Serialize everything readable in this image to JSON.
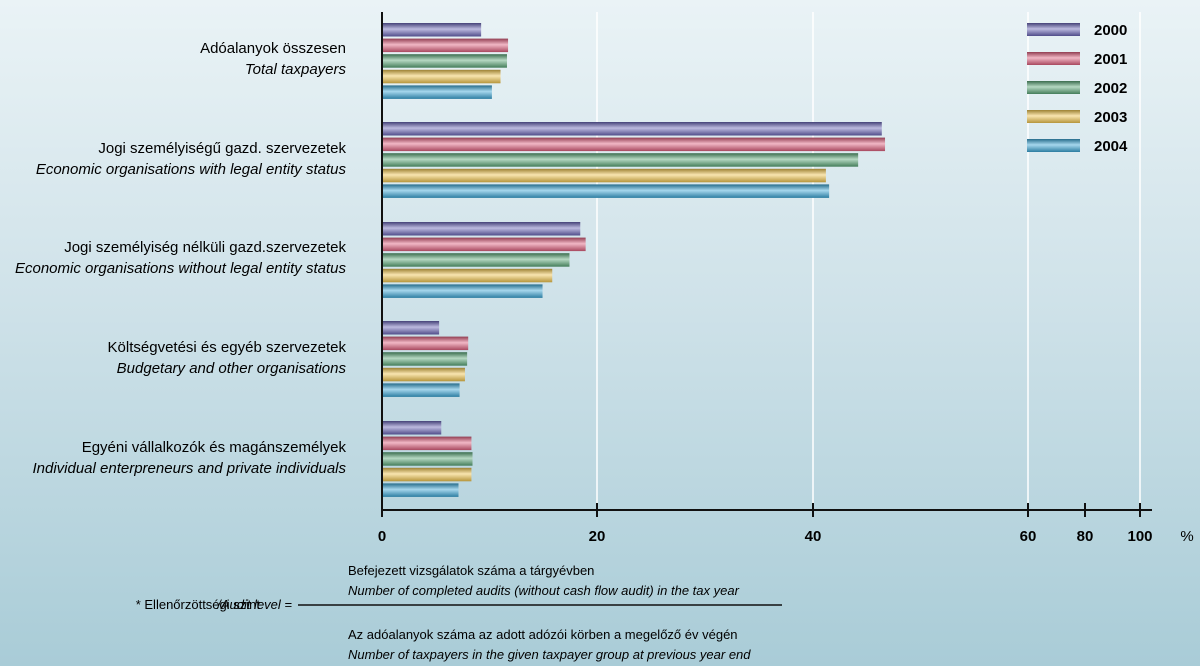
{
  "chart_data": {
    "type": "bar",
    "orientation": "horizontal",
    "categories": [
      {
        "hu": "Adóalanyok összesen",
        "en": "Total taxpayers"
      },
      {
        "hu": "Jogi személyiségű gazd. szervezetek",
        "en": "Economic organisations with legal entity status"
      },
      {
        "hu": "Jogi személyiség nélküli gazd.szervezetek",
        "en": "Economic organisations without legal entity status"
      },
      {
        "hu": "Költségvetési  és egyéb szervezetek",
        "en": "Budgetary and other organisations"
      },
      {
        "hu": "Egyéni vállalkozók és magánszemélyek",
        "en": "Individual enterpreneurs and private individuals"
      }
    ],
    "series": [
      {
        "name": "2000",
        "color": "#6a66b8",
        "values": [
          9.2,
          46.4,
          18.4,
          5.3,
          5.5
        ]
      },
      {
        "name": "2001",
        "color": "#e0607e",
        "values": [
          11.7,
          46.7,
          18.9,
          8.0,
          8.3
        ]
      },
      {
        "name": "2002",
        "color": "#5aa878",
        "values": [
          11.6,
          44.2,
          17.4,
          7.9,
          8.4
        ]
      },
      {
        "name": "2003",
        "color": "#f2c64f",
        "values": [
          11.0,
          41.2,
          15.8,
          7.7,
          8.3
        ]
      },
      {
        "name": "2004",
        "color": "#3aa6d6",
        "values": [
          10.2,
          41.5,
          14.9,
          7.2,
          7.1
        ]
      }
    ],
    "x_ticks": [
      "0",
      "20",
      "40",
      "60",
      "80",
      "100"
    ],
    "x_unit": "%",
    "grid": true,
    "legend_position": "top-right"
  },
  "formula": {
    "prefix": "* Ellenőrzöttségi szint",
    "prefix_en": "/Audit level =",
    "numerator_hu": "Befejezett vizsgálatok száma a tárgyévben",
    "numerator_en": "Number of completed audits (without cash flow audit) in the tax year",
    "denominator_hu": "Az adóalanyok száma az adott adózói körben a megelőző év végén",
    "denominator_en": "Number of taxpayers in the given taxpayer group at previous year end"
  }
}
